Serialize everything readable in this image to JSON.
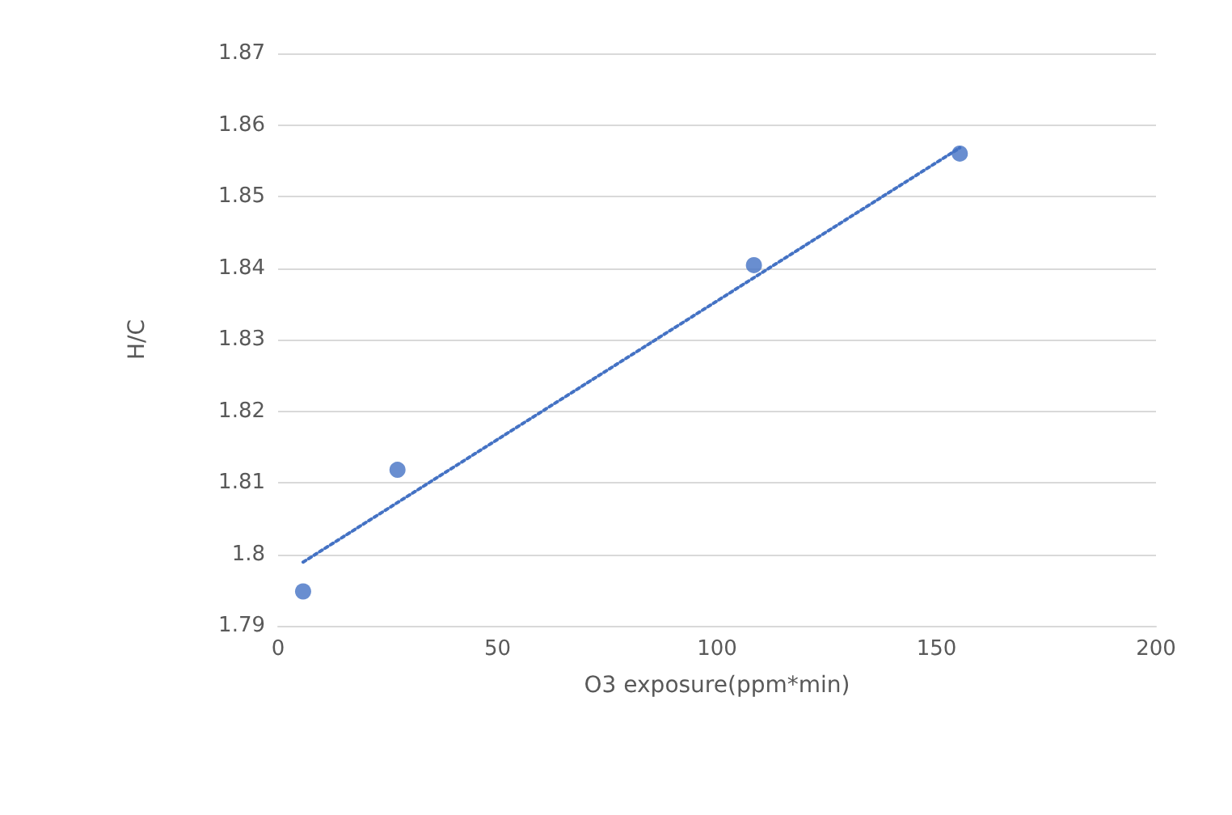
{
  "chart_data": {
    "type": "scatter",
    "xlabel": "O3 exposure(ppm*min)",
    "ylabel": "H/C",
    "xlim": [
      0,
      200
    ],
    "xticks": [
      0,
      50,
      100,
      150,
      200
    ],
    "ylim": [
      1.79,
      1.87
    ],
    "yticks": [
      1.79,
      1.8,
      1.81,
      1.82,
      1.83,
      1.84,
      1.85,
      1.86,
      1.87
    ],
    "grid": "y",
    "marker": "circle",
    "series": [
      {
        "color": "#4472c4",
        "x": [
          5.7,
          27.2,
          108.4,
          155.3
        ],
        "values": [
          1.7948,
          1.8118,
          1.8404,
          1.856
        ]
      },
      {
        "type": "line",
        "color": "#4472c4",
        "line_style": "dotted",
        "marker": "none",
        "x": [
          5.7,
          155.3
        ],
        "values": [
          1.7989,
          1.8568
        ]
      }
    ]
  }
}
